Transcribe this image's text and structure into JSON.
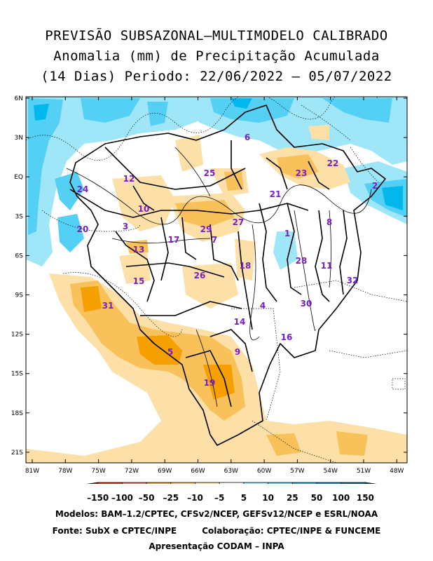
{
  "title": {
    "line1": "PREVISÃO SUBSAZONAL–MULTIMODELO CALIBRADO",
    "line2": "Anomalia (mm) de Precipitação Acumulada",
    "line3": "(14 Dias) Periodo: 22/06/2022 – 05/07/2022"
  },
  "axes": {
    "lat_labels": [
      "6N",
      "3N",
      "EQ",
      "3S",
      "6S",
      "9S",
      "12S",
      "15S",
      "18S",
      "21S"
    ],
    "lon_labels": [
      "81W",
      "78W",
      "75W",
      "72W",
      "69W",
      "66W",
      "63W",
      "60W",
      "57W",
      "54W",
      "51W",
      "48W"
    ]
  },
  "legend": {
    "unit": "mm",
    "ticks": [
      "–150",
      "–100",
      "–50",
      "–25",
      "–10",
      "–5",
      "5",
      "10",
      "25",
      "50",
      "100",
      "150"
    ],
    "colors": [
      "#b30000",
      "#ff1a1a",
      "#ff6e6e",
      "#f5a000",
      "#f8c15a",
      "#fde0a8",
      "#ffffff",
      "#9ee6f8",
      "#55d0f5",
      "#00b7ee",
      "#0088bb",
      "#006080",
      "#004860"
    ]
  },
  "basins": [
    {
      "id": "1"
    },
    {
      "id": "2"
    },
    {
      "id": "3"
    },
    {
      "id": "4"
    },
    {
      "id": "5"
    },
    {
      "id": "6"
    },
    {
      "id": "7"
    },
    {
      "id": "8"
    },
    {
      "id": "9"
    },
    {
      "id": "10"
    },
    {
      "id": "11"
    },
    {
      "id": "12"
    },
    {
      "id": "13"
    },
    {
      "id": "14"
    },
    {
      "id": "15"
    },
    {
      "id": "16"
    },
    {
      "id": "17"
    },
    {
      "id": "18"
    },
    {
      "id": "19"
    },
    {
      "id": "20"
    },
    {
      "id": "21"
    },
    {
      "id": "22"
    },
    {
      "id": "23"
    },
    {
      "id": "24"
    },
    {
      "id": "25"
    },
    {
      "id": "26"
    },
    {
      "id": "27"
    },
    {
      "id": "28"
    },
    {
      "id": "29"
    },
    {
      "id": "30"
    },
    {
      "id": "31"
    },
    {
      "id": "32"
    }
  ],
  "footer": {
    "models": "Modelos: BAM–1.2/CPTEC, CFSv2/NCEP, GEFSv12/NCEP e ESRL/NOAA",
    "source": "Fonte: SubX e CPTEC/INPE",
    "collab": "Colaboração: CPTEC/INPE & FUNCEME",
    "presentation": "Apresentação CODAM – INPA"
  }
}
